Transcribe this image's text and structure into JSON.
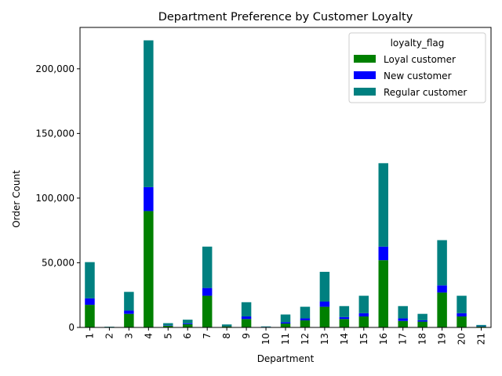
{
  "chart_data": {
    "type": "bar",
    "stacked": true,
    "title": "Department Preference by Customer Loyalty",
    "xlabel": "Department",
    "ylabel": "Order Count",
    "categories": [
      "1",
      "2",
      "3",
      "4",
      "5",
      "6",
      "7",
      "8",
      "9",
      "10",
      "11",
      "12",
      "13",
      "14",
      "15",
      "16",
      "17",
      "18",
      "19",
      "20",
      "21"
    ],
    "series": [
      {
        "name": "Loyal customer",
        "color": "#008000",
        "values": [
          17500,
          200,
          10500,
          90000,
          1300,
          2500,
          24500,
          900,
          6500,
          300,
          3000,
          5500,
          16000,
          6500,
          8500,
          52000,
          5000,
          4500,
          27000,
          8500,
          700
        ]
      },
      {
        "name": "New customer",
        "color": "#0000ff",
        "values": [
          5000,
          50,
          2500,
          18500,
          300,
          700,
          6000,
          200,
          2000,
          100,
          1000,
          1500,
          4000,
          1500,
          2500,
          10500,
          2000,
          1000,
          5500,
          2500,
          200
        ]
      },
      {
        "name": "Regular customer",
        "color": "#008080",
        "values": [
          28000,
          300,
          14500,
          113500,
          1700,
          2800,
          32000,
          1200,
          11000,
          400,
          6000,
          9000,
          23000,
          8500,
          13500,
          64500,
          9500,
          5000,
          35000,
          13500,
          1000
        ]
      }
    ],
    "ylim": [
      0,
      232000
    ],
    "yticks": [
      0,
      50000,
      100000,
      150000,
      200000
    ],
    "ytick_labels": [
      "0",
      "50,000",
      "100,000",
      "150,000",
      "200,000"
    ],
    "legend": {
      "title": "loyalty_flag",
      "placement": "top-right"
    },
    "grid": false
  }
}
